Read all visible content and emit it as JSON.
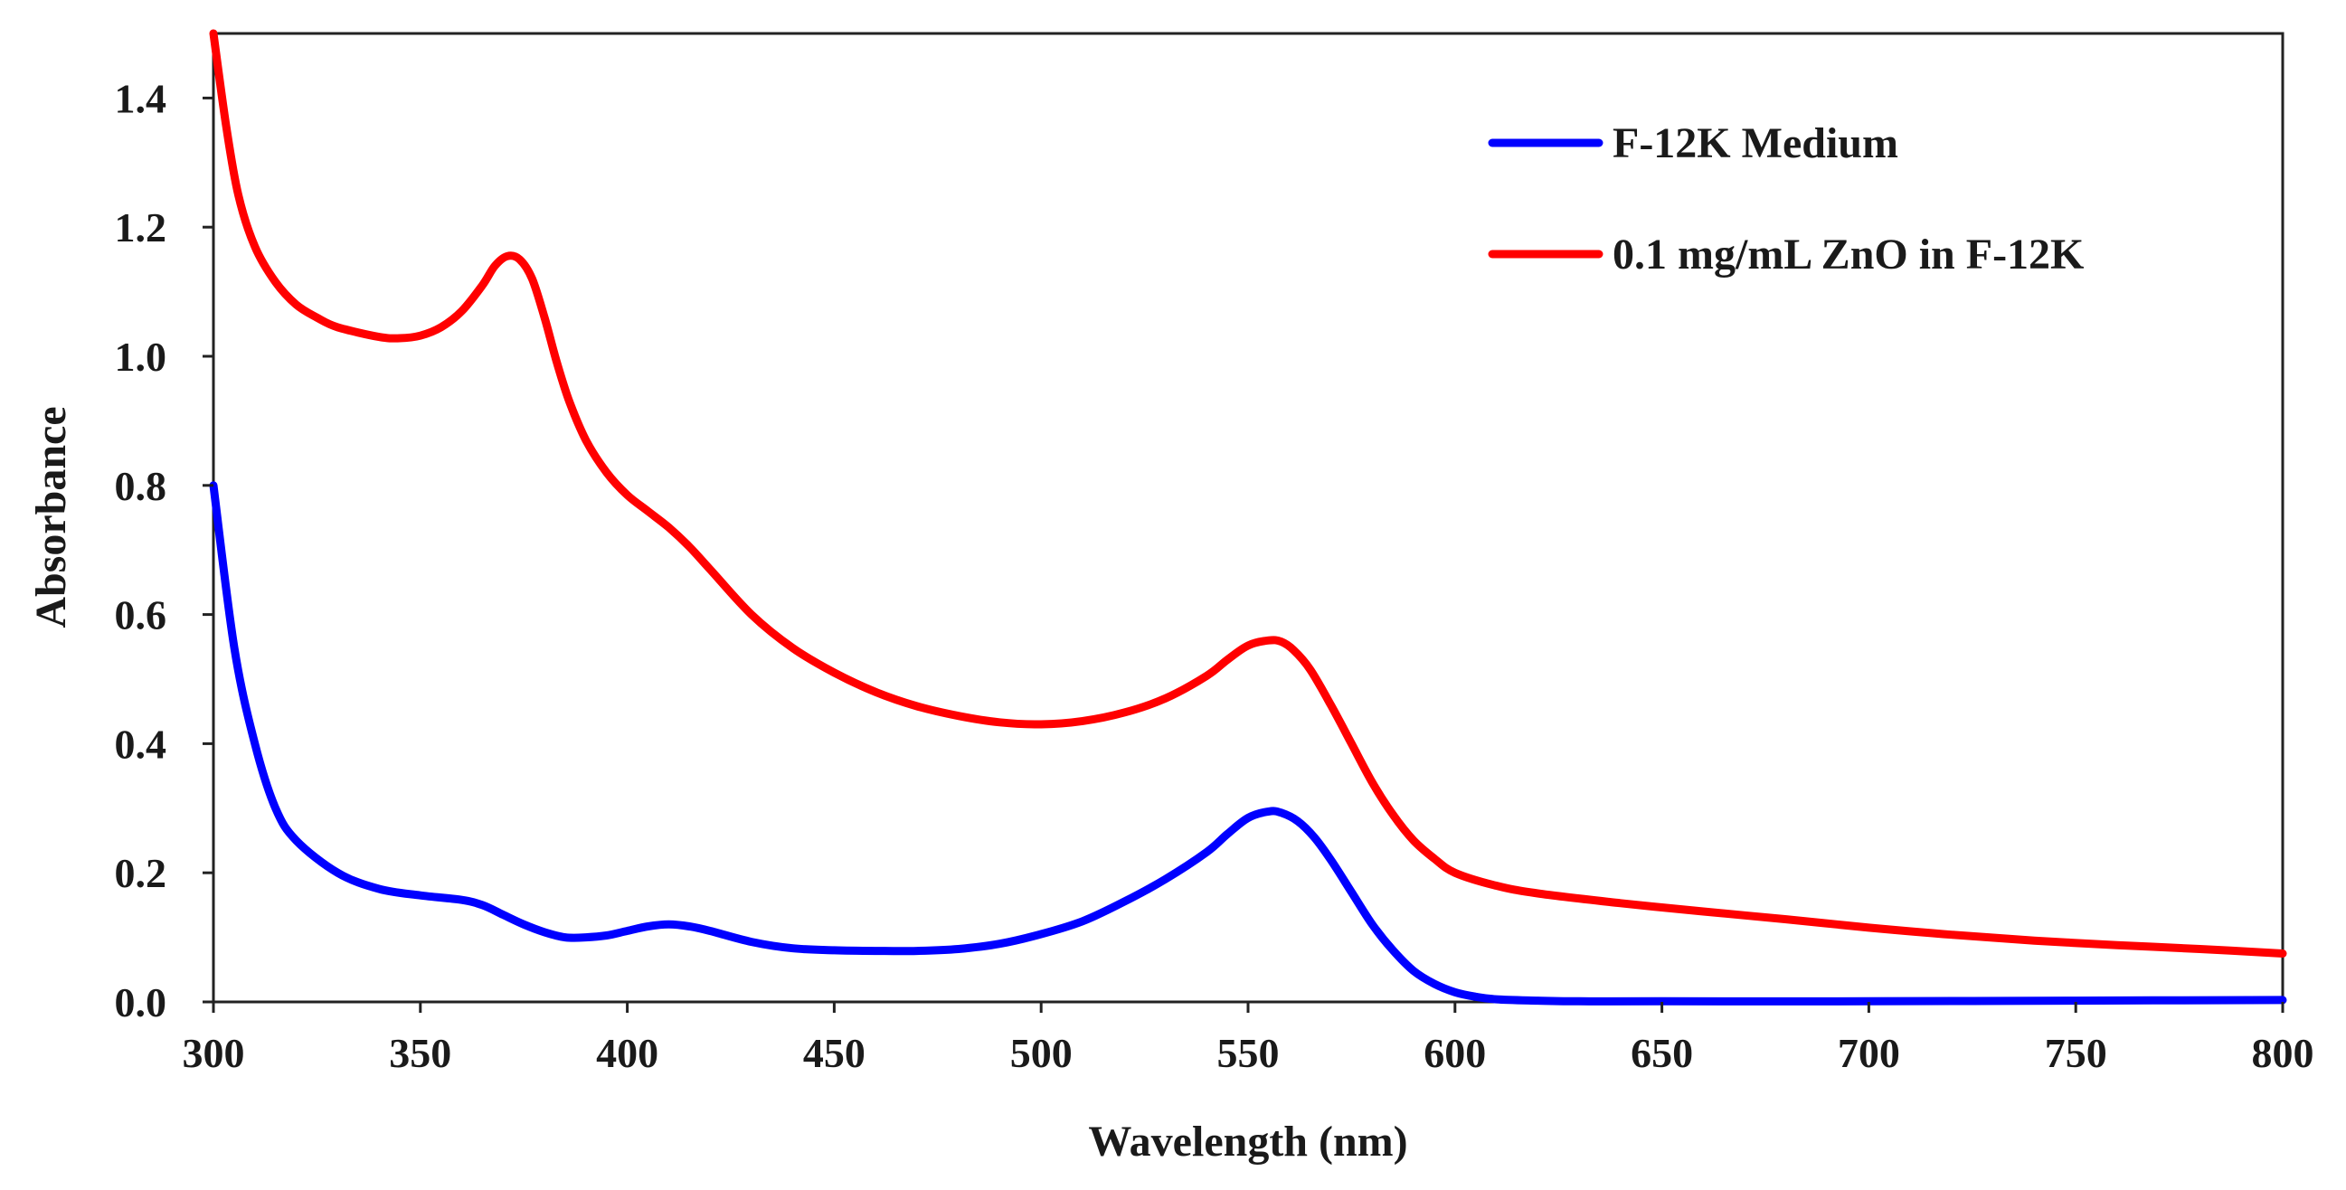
{
  "chart_data": {
    "type": "line",
    "title": "",
    "xlabel": "Wavelength  (nm)",
    "ylabel": "Absorbance",
    "xlim": [
      300,
      800
    ],
    "ylim": [
      0,
      1.5
    ],
    "xticks": [
      300,
      350,
      400,
      450,
      500,
      550,
      600,
      650,
      700,
      750,
      800
    ],
    "xtick_labels": [
      "300",
      "350",
      "400",
      "450",
      "500",
      "550",
      "600",
      "650",
      "700",
      "750",
      "800"
    ],
    "yticks": [
      0,
      0.2,
      0.4,
      0.6,
      0.8,
      1.0,
      1.2,
      1.4
    ],
    "ytick_labels": [
      "0.0",
      "0.2",
      "0.4",
      "0.6",
      "0.8",
      "1.0",
      "1.2",
      "1.4"
    ],
    "grid": false,
    "legend_position": "top-right",
    "series": [
      {
        "name": "F-12K Medium",
        "color": "#0000ff",
        "x": [
          300,
          305,
          310,
          315,
          320,
          330,
          340,
          350,
          360,
          365,
          370,
          375,
          380,
          385,
          390,
          395,
          400,
          405,
          410,
          415,
          420,
          430,
          440,
          450,
          460,
          470,
          480,
          490,
          500,
          510,
          520,
          530,
          540,
          545,
          550,
          555,
          558,
          562,
          566,
          570,
          575,
          580,
          585,
          590,
          595,
          600,
          605,
          610,
          620,
          630,
          650,
          700,
          750,
          800
        ],
        "y": [
          0.8,
          0.55,
          0.4,
          0.3,
          0.25,
          0.2,
          0.175,
          0.165,
          0.158,
          0.15,
          0.135,
          0.12,
          0.108,
          0.1,
          0.1,
          0.103,
          0.11,
          0.117,
          0.12,
          0.117,
          0.11,
          0.093,
          0.083,
          0.08,
          0.079,
          0.079,
          0.082,
          0.09,
          0.105,
          0.125,
          0.155,
          0.19,
          0.232,
          0.26,
          0.285,
          0.295,
          0.293,
          0.28,
          0.255,
          0.22,
          0.17,
          0.12,
          0.08,
          0.048,
          0.028,
          0.015,
          0.008,
          0.004,
          0.002,
          0.001,
          0.001,
          0.001,
          0.002,
          0.003
        ]
      },
      {
        "name": "0.1 mg/mL ZnO in F-12K",
        "color": "#ff0000",
        "x": [
          300,
          303,
          306,
          310,
          315,
          320,
          325,
          330,
          340,
          345,
          350,
          355,
          360,
          365,
          368,
          371,
          374,
          377,
          380,
          383,
          386,
          390,
          395,
          400,
          405,
          410,
          415,
          420,
          430,
          440,
          450,
          460,
          470,
          480,
          490,
          500,
          510,
          520,
          530,
          540,
          545,
          550,
          555,
          558,
          561,
          565,
          570,
          575,
          580,
          585,
          590,
          595,
          600,
          610,
          620,
          640,
          660,
          680,
          700,
          720,
          740,
          760,
          780,
          800
        ],
        "y": [
          1.5,
          1.36,
          1.25,
          1.17,
          1.115,
          1.08,
          1.06,
          1.045,
          1.03,
          1.028,
          1.032,
          1.045,
          1.07,
          1.11,
          1.14,
          1.155,
          1.15,
          1.12,
          1.06,
          0.99,
          0.93,
          0.87,
          0.82,
          0.785,
          0.76,
          0.735,
          0.705,
          0.67,
          0.6,
          0.548,
          0.51,
          0.48,
          0.458,
          0.443,
          0.433,
          0.43,
          0.435,
          0.448,
          0.47,
          0.505,
          0.53,
          0.552,
          0.56,
          0.558,
          0.545,
          0.515,
          0.46,
          0.4,
          0.34,
          0.29,
          0.25,
          0.222,
          0.2,
          0.18,
          0.168,
          0.153,
          0.14,
          0.128,
          0.115,
          0.104,
          0.095,
          0.088,
          0.082,
          0.075
        ]
      }
    ]
  }
}
